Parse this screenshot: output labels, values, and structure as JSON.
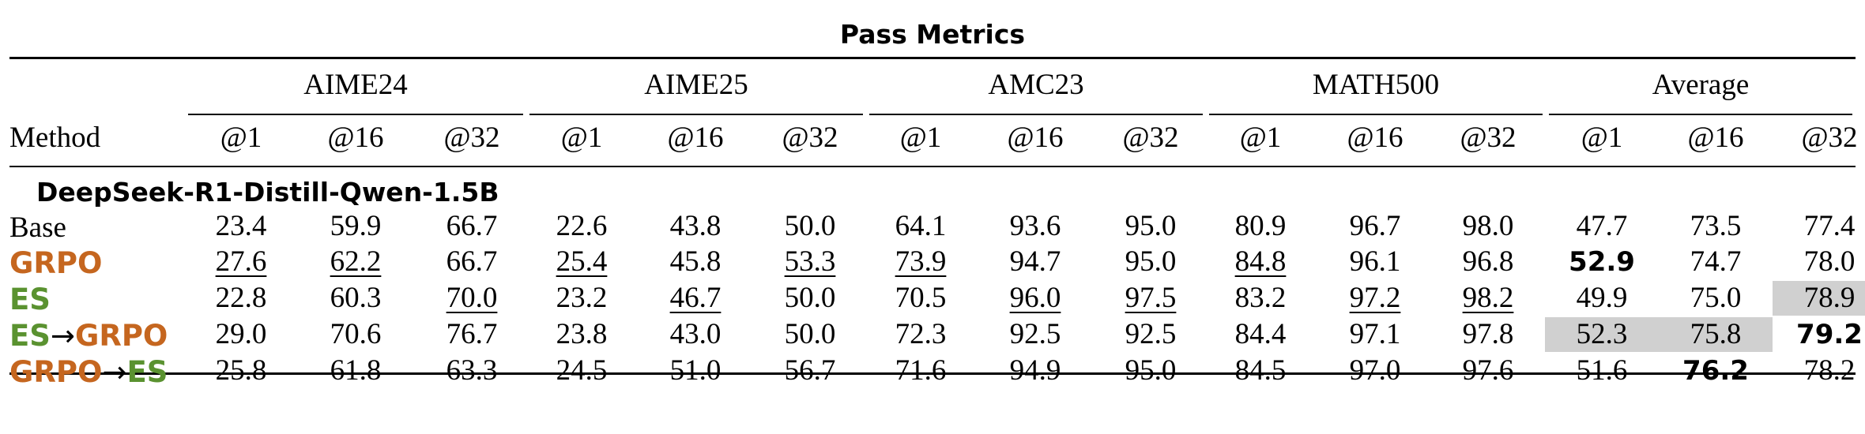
{
  "title": "Pass Metrics",
  "groups": [
    "AIME24",
    "AIME25",
    "AMC23",
    "MATH500",
    "Average"
  ],
  "method_header": "Method",
  "subheaders": [
    "@1",
    "@16",
    "@32",
    "@1",
    "@16",
    "@32",
    "@1",
    "@16",
    "@32",
    "@1",
    "@16",
    "@32",
    "@1",
    "@16",
    "@32"
  ],
  "section_label": "DeepSeek-R1-Distill-Qwen-1.5B",
  "arrow": "→",
  "rows": [
    {
      "method": [
        {
          "text": "Base",
          "style": "plain"
        }
      ],
      "values": [
        "23.4",
        "59.9",
        "66.7",
        "22.6",
        "43.8",
        "50.0",
        "64.1",
        "93.6",
        "95.0",
        "80.9",
        "96.7",
        "98.0",
        "47.7",
        "73.5",
        "77.4"
      ]
    },
    {
      "method": [
        {
          "text": "GRPO",
          "style": "orange"
        }
      ],
      "values": [
        "27.6",
        "62.2",
        "66.7",
        "25.4",
        "45.8",
        "53.3",
        "73.9",
        "94.7",
        "95.0",
        "84.8",
        "96.1",
        "96.8",
        "52.9",
        "74.7",
        "78.0"
      ]
    },
    {
      "method": [
        {
          "text": "ES",
          "style": "green"
        }
      ],
      "values": [
        "22.8",
        "60.3",
        "70.0",
        "23.2",
        "46.7",
        "50.0",
        "70.5",
        "96.0",
        "97.5",
        "83.2",
        "97.2",
        "98.2",
        "49.9",
        "75.0",
        "78.9"
      ]
    },
    {
      "method": [
        {
          "text": "ES",
          "style": "green"
        },
        {
          "text": "→",
          "style": "arrow"
        },
        {
          "text": "GRPO",
          "style": "orange"
        }
      ],
      "values": [
        "29.0",
        "70.6",
        "76.7",
        "23.8",
        "43.0",
        "50.0",
        "72.3",
        "92.5",
        "92.5",
        "84.4",
        "97.1",
        "97.8",
        "52.3",
        "75.8",
        "79.2"
      ]
    },
    {
      "method": [
        {
          "text": "GRPO",
          "style": "orange"
        },
        {
          "text": "→",
          "style": "arrow"
        },
        {
          "text": "ES",
          "style": "green"
        }
      ],
      "values": [
        "25.8",
        "61.8",
        "63.3",
        "24.5",
        "51.0",
        "56.7",
        "71.6",
        "94.9",
        "95.0",
        "84.5",
        "97.0",
        "97.6",
        "51.6",
        "76.2",
        "78.2"
      ]
    }
  ],
  "underlined": [
    [
      1,
      0
    ],
    [
      1,
      1
    ],
    [
      1,
      3
    ],
    [
      1,
      5
    ],
    [
      1,
      6
    ],
    [
      1,
      9
    ],
    [
      2,
      2
    ],
    [
      2,
      4
    ],
    [
      2,
      7
    ],
    [
      2,
      8
    ],
    [
      2,
      10
    ],
    [
      2,
      11
    ]
  ],
  "bold": [
    [
      1,
      12
    ],
    [
      3,
      14
    ],
    [
      4,
      13
    ]
  ],
  "highlighted": [
    [
      2,
      14
    ],
    [
      3,
      12
    ],
    [
      3,
      13
    ]
  ],
  "colors": {
    "orange": "#c5661f",
    "green": "#5a9230",
    "highlight": "#d0d0d0"
  }
}
